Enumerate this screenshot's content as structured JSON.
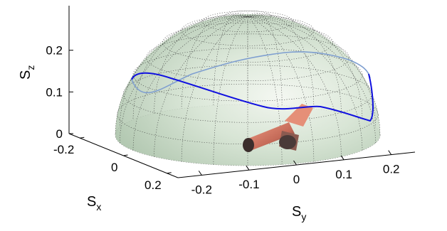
{
  "chart_data": {
    "type": "3d-hemisphere-surface",
    "title": "",
    "axes": {
      "x": {
        "label": "S",
        "label_subscript": "x",
        "ticks": [
          "-0.2",
          "0",
          "0.2"
        ],
        "range": [
          -0.25,
          0.25
        ]
      },
      "y": {
        "label": "S",
        "label_subscript": "y",
        "ticks": [
          "-0.2",
          "-0.1",
          "0",
          "0.1",
          "0.2"
        ],
        "range": [
          -0.25,
          0.25
        ]
      },
      "z": {
        "label": "S",
        "label_subscript": "z",
        "ticks": [
          "0",
          "0.1",
          "0.2"
        ],
        "range": [
          0,
          0.25
        ]
      }
    },
    "sphere_radius": 0.25,
    "grid": true,
    "legend": "none",
    "trajectory_color": "#1010e0",
    "surface_color": "#c8dcc8",
    "object_color": "#d27a66"
  }
}
